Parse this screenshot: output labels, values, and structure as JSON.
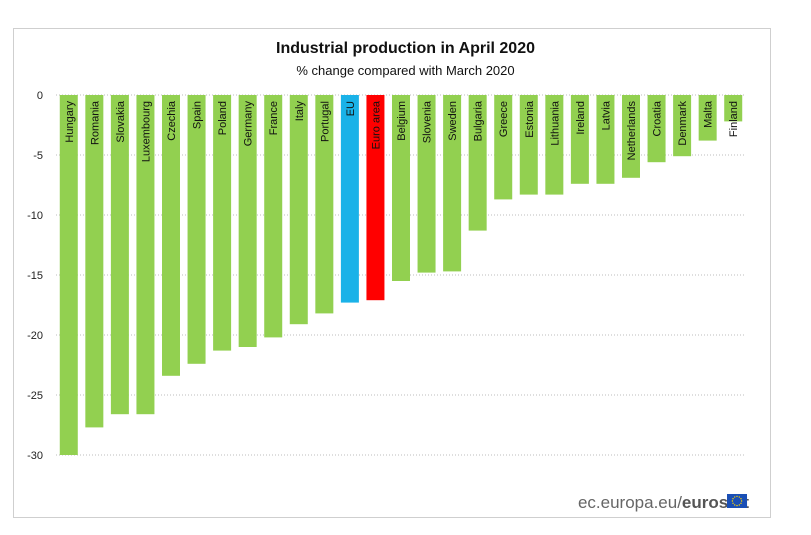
{
  "colors": {
    "country": "#92d050",
    "eu": "#1ab2e8",
    "euro_area": "#ff0000",
    "grid": "#bdbdbd",
    "flag_blue": "#1a4fb5",
    "flag_star": "#ffd400"
  },
  "source": {
    "domain": "ec.europa.eu/",
    "brand": "eurostat",
    "flag_icon": "eu-flag-icon"
  },
  "chart_data": {
    "type": "bar",
    "title": "Industrial production in April 2020",
    "subtitle": "% change compared with March 2020",
    "xlabel": "",
    "ylabel": "",
    "ylim": [
      -30,
      0
    ],
    "yticks": [
      0,
      -5,
      -10,
      -15,
      -20,
      -25,
      -30
    ],
    "grid": true,
    "legend": "none",
    "categories": [
      "Hungary",
      "Romania",
      "Slovakia",
      "Luxembourg",
      "Czechia",
      "Spain",
      "Poland",
      "Germany",
      "France",
      "Italy",
      "Portugal",
      "EU",
      "Euro area",
      "Belgium",
      "Slovenia",
      "Sweden",
      "Bulgaria",
      "Greece",
      "Estonia",
      "Lithuania",
      "Ireland",
      "Latvia",
      "Netherlands",
      "Croatia",
      "Denmark",
      "Malta",
      "Finland"
    ],
    "values": [
      -30.0,
      -27.7,
      -26.6,
      -26.6,
      -23.4,
      -22.4,
      -21.3,
      -21.0,
      -20.2,
      -19.1,
      -18.2,
      -17.3,
      -17.1,
      -15.5,
      -14.8,
      -14.7,
      -11.3,
      -8.7,
      -8.3,
      -8.3,
      -7.4,
      -7.4,
      -6.9,
      -5.6,
      -5.1,
      -3.8,
      -2.2
    ],
    "highlight": {
      "EU": "eu",
      "Euro area": "euro_area"
    }
  }
}
